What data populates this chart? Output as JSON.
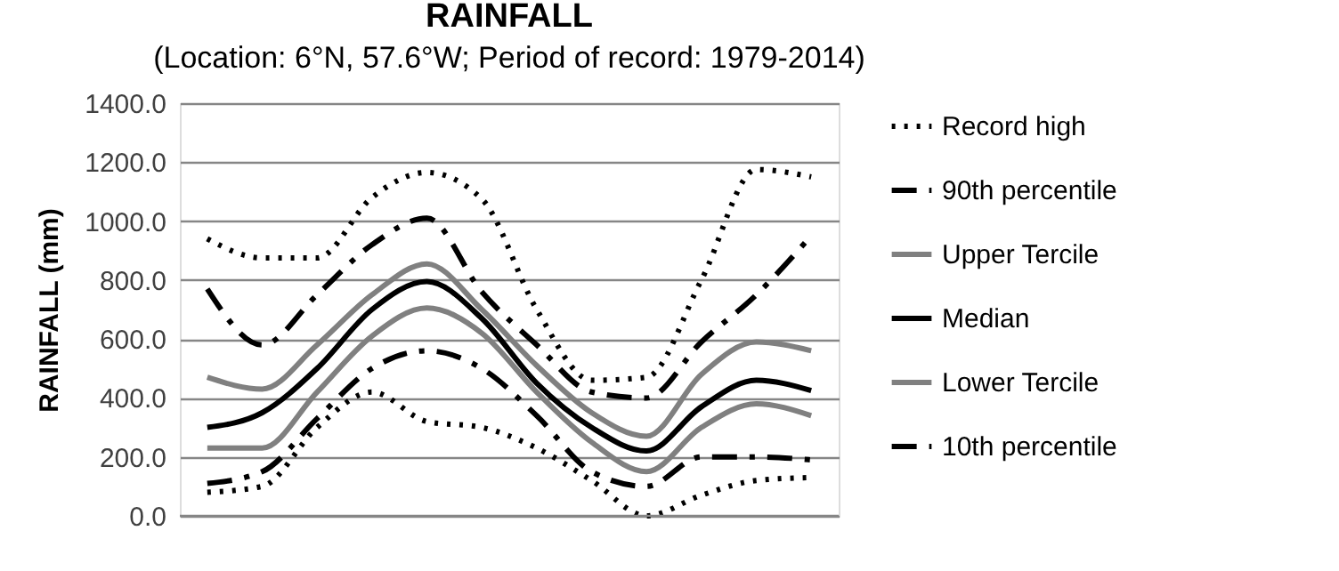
{
  "chart_data": {
    "type": "line",
    "title": "RAINFALL",
    "subtitle": "(Location: 6°N, 57.6°W; Period of record: 1979-2014)",
    "ylabel": "RAINFALL (mm)",
    "categories": [
      null,
      null,
      null,
      null,
      null,
      null,
      null,
      null,
      null,
      null,
      null,
      null
    ],
    "series": [
      {
        "name": "Record high",
        "color": "#000000",
        "line_style": "dotted",
        "values": [
          940,
          875,
          875,
          1080,
          1165,
          1075,
          700,
          460,
          470,
          800,
          1175,
          1150
        ]
      },
      {
        "name": "90th percentile",
        "color": "#000000",
        "line_style": "dashed",
        "values": [
          770,
          580,
          750,
          920,
          1010,
          760,
          580,
          420,
          400,
          590,
          750,
          950
        ]
      },
      {
        "name": "Upper Tercile",
        "color": "#808080",
        "line_style": "solid",
        "values": [
          470,
          430,
          580,
          750,
          855,
          700,
          510,
          350,
          270,
          480,
          590,
          560
        ]
      },
      {
        "name": "Median",
        "color": "#000000",
        "line_style": "solid",
        "values": [
          300,
          350,
          500,
          700,
          795,
          670,
          450,
          300,
          220,
          370,
          460,
          425
        ]
      },
      {
        "name": "Lower Tercile",
        "color": "#808080",
        "line_style": "solid",
        "values": [
          230,
          230,
          420,
          610,
          705,
          620,
          420,
          250,
          150,
          300,
          380,
          340
        ]
      },
      {
        "name": "10th percentile",
        "color": "#000000",
        "line_style": "dashed",
        "values": [
          110,
          150,
          330,
          500,
          560,
          500,
          340,
          150,
          100,
          200,
          200,
          190
        ]
      },
      {
        "color": "#000000",
        "line_style": "dotted",
        "values": [
          80,
          100,
          300,
          420,
          320,
          300,
          230,
          120,
          0,
          70,
          120,
          130
        ]
      }
    ],
    "ylim": [
      0,
      1400
    ],
    "yticks": [
      {
        "value": 0,
        "label": "0.0"
      },
      {
        "value": 200,
        "label": "200.0"
      },
      {
        "value": 400,
        "label": "400.0"
      },
      {
        "value": 600,
        "label": "600.0"
      },
      {
        "value": 800,
        "label": "800.0"
      },
      {
        "value": 1000,
        "label": "1000.0"
      },
      {
        "value": 1200,
        "label": "1200.0"
      },
      {
        "value": 1400,
        "label": "1400.0"
      }
    ],
    "grid": "y",
    "legend": "right",
    "tick_labels": "y"
  }
}
